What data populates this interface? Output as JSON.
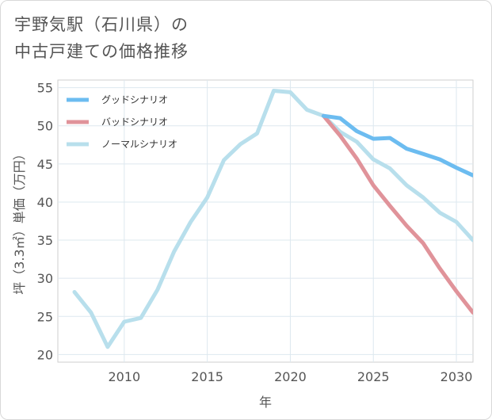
{
  "title_lines": [
    "宇野気駅（石川県）の",
    "中古戸建ての価格推移"
  ],
  "chart_data": {
    "type": "line",
    "title": "宇野気駅（石川県）の中古戸建ての価格推移",
    "xlabel": "年",
    "ylabel": "坪（3.3㎡）単価（万円）",
    "xlim": [
      2006,
      2031
    ],
    "ylim": [
      19,
      56
    ],
    "x_ticks": [
      2010,
      2015,
      2020,
      2025,
      2030
    ],
    "y_ticks": [
      20,
      25,
      30,
      35,
      40,
      45,
      50,
      55
    ],
    "grid": true,
    "legend_position": "top-left",
    "series": [
      {
        "name": "グッドシナリオ",
        "color": "#6cbcf0",
        "x": [
          2022,
          2023,
          2024,
          2025,
          2026,
          2027,
          2028,
          2029,
          2030,
          2031
        ],
        "values": [
          51.3,
          51.0,
          49.3,
          48.3,
          48.4,
          47.0,
          46.3,
          45.6,
          44.5,
          43.5
        ]
      },
      {
        "name": "バッドシナリオ",
        "color": "#e0939a",
        "x": [
          2022,
          2023,
          2024,
          2025,
          2026,
          2027,
          2028,
          2029,
          2030,
          2031
        ],
        "values": [
          51.3,
          48.7,
          45.7,
          42.2,
          39.5,
          36.9,
          34.6,
          31.3,
          28.3,
          25.5
        ]
      },
      {
        "name": "ノーマルシナリオ",
        "color": "#b8dfec",
        "x": [
          2007,
          2008,
          2009,
          2010,
          2011,
          2012,
          2013,
          2014,
          2015,
          2016,
          2017,
          2018,
          2019,
          2020,
          2021,
          2022,
          2023,
          2024,
          2025,
          2026,
          2027,
          2028,
          2029,
          2030,
          2031
        ],
        "values": [
          28.2,
          25.5,
          21.0,
          24.3,
          24.8,
          28.5,
          33.5,
          37.4,
          40.6,
          45.5,
          47.6,
          49.0,
          54.6,
          54.4,
          52.1,
          51.3,
          49.2,
          47.9,
          45.6,
          44.4,
          42.2,
          40.6,
          38.6,
          37.4,
          35.0
        ]
      }
    ]
  }
}
